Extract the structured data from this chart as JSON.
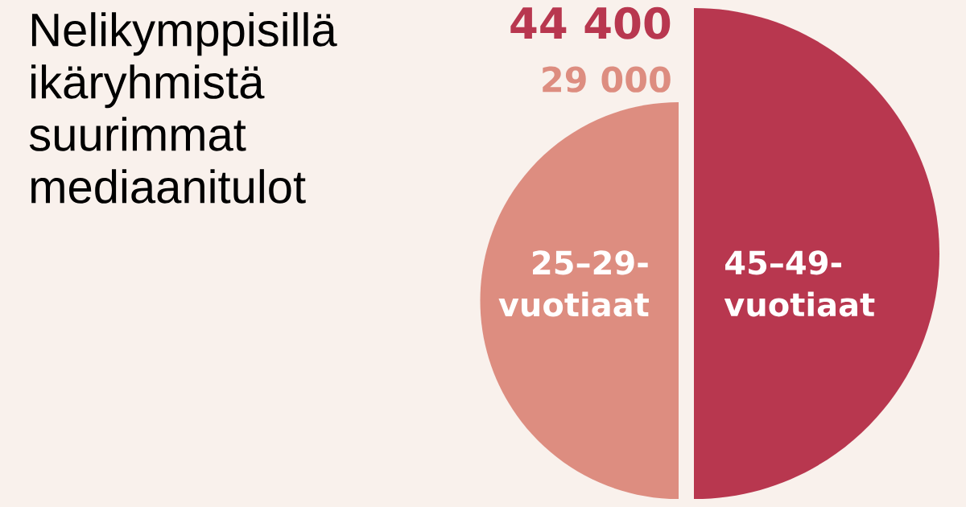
{
  "chart_data": {
    "type": "other",
    "title": "Nelikymppisillä ikäryhmistä suurimmat mediaanitulot",
    "categories": [
      "25–29-vuotiaat",
      "45–49-vuotiaat"
    ],
    "values": [
      29000,
      44400
    ],
    "value_labels": [
      "29 000",
      "44 400"
    ],
    "colors": [
      "#dd8d80",
      "#b8374f"
    ]
  }
}
